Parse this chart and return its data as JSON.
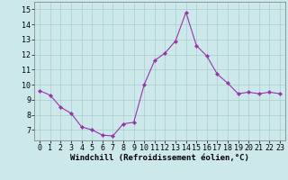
{
  "x": [
    0,
    1,
    2,
    3,
    4,
    5,
    6,
    7,
    8,
    9,
    10,
    11,
    12,
    13,
    14,
    15,
    16,
    17,
    18,
    19,
    20,
    21,
    22,
    23
  ],
  "y": [
    9.6,
    9.3,
    8.5,
    8.1,
    7.2,
    7.0,
    6.65,
    6.6,
    7.4,
    7.5,
    10.0,
    11.6,
    12.1,
    12.9,
    14.8,
    12.6,
    11.9,
    10.7,
    10.1,
    9.4,
    9.5,
    9.4,
    9.5,
    9.4
  ],
  "line_color": "#9933aa",
  "marker": "D",
  "marker_size": 2.2,
  "background_color": "#cce8ea",
  "grid_color": "#aacccc",
  "xlabel": "Windchill (Refroidissement éolien,°C)",
  "xlabel_fontsize": 6.5,
  "tick_fontsize": 6.0,
  "ylim": [
    6.3,
    15.5
  ],
  "xlim": [
    -0.5,
    23.5
  ],
  "yticks": [
    7,
    8,
    9,
    10,
    11,
    12,
    13,
    14,
    15
  ],
  "xticks": [
    0,
    1,
    2,
    3,
    4,
    5,
    6,
    7,
    8,
    9,
    10,
    11,
    12,
    13,
    14,
    15,
    16,
    17,
    18,
    19,
    20,
    21,
    22,
    23
  ]
}
